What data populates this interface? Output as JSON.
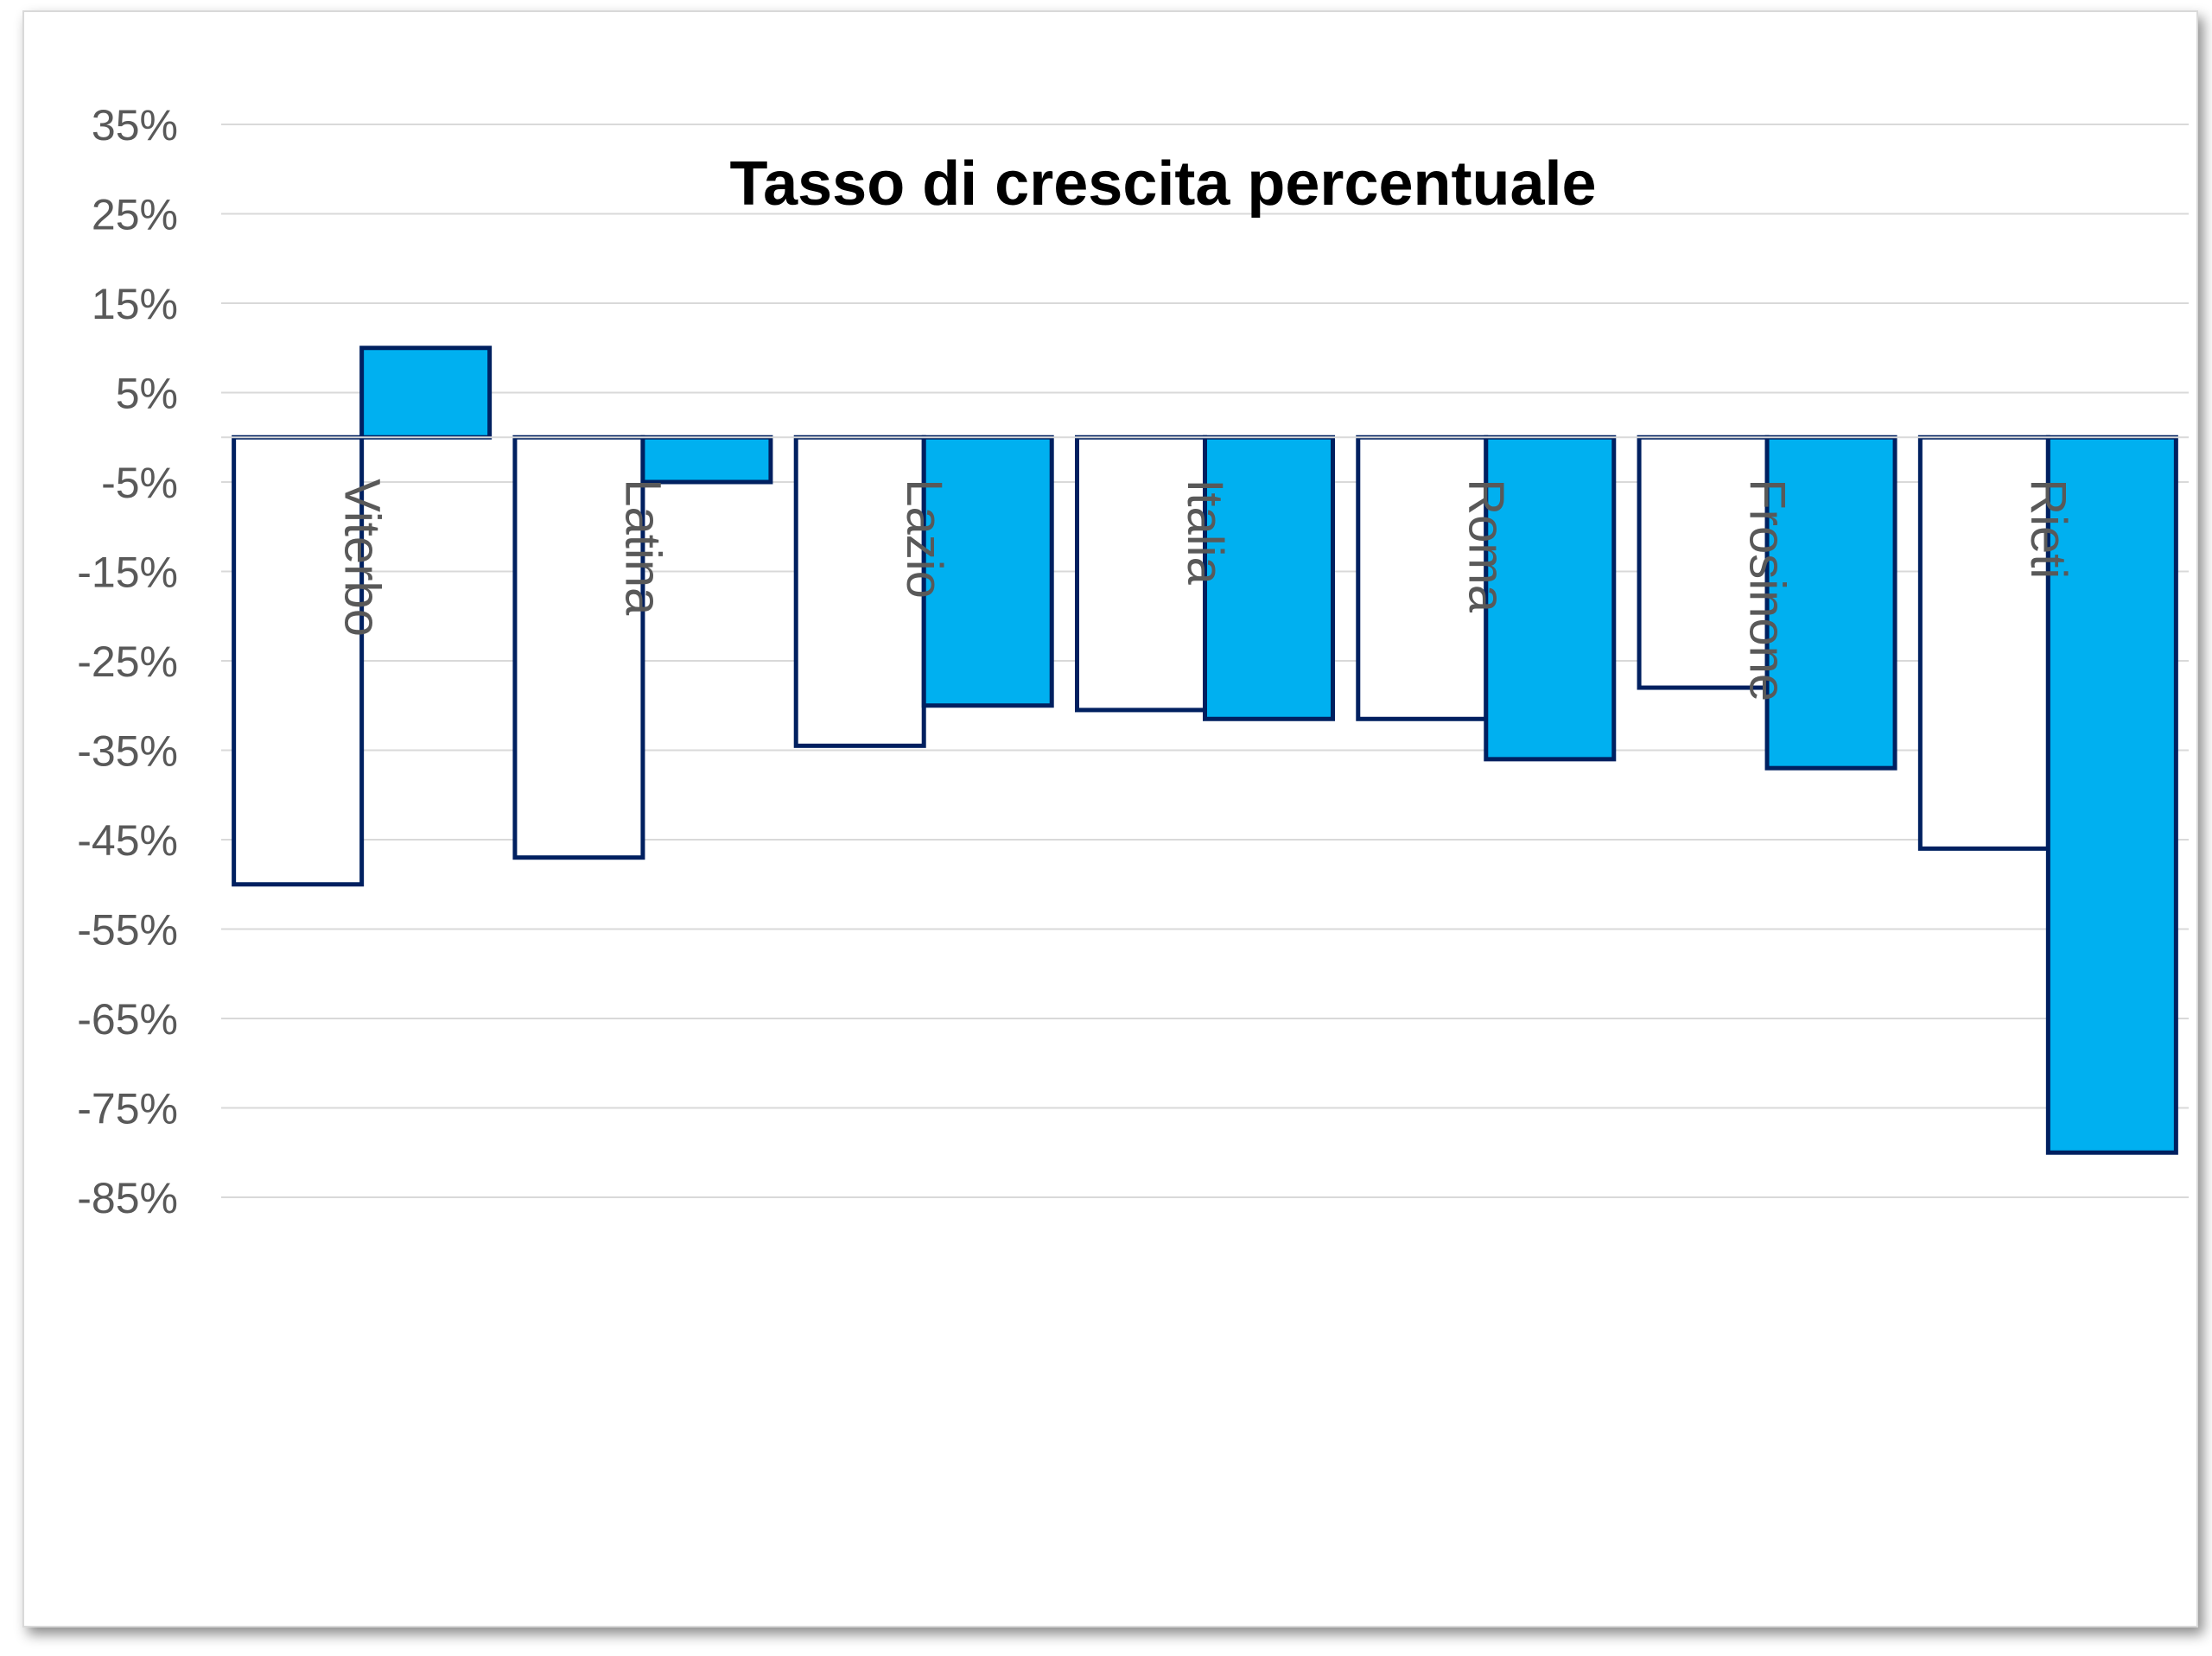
{
  "chart_data": {
    "type": "bar",
    "title": "Tasso di crescita percentuale",
    "xlabel": "",
    "ylabel": "",
    "categories": [
      "Viterbo",
      "Latina",
      "Lazio",
      "Italia",
      "Roma",
      "Frosinone",
      "Rieti"
    ],
    "series": [
      {
        "values": [
          -50,
          -47,
          -34.5,
          -30.5,
          -31.5,
          -28,
          -46
        ]
      },
      {
        "values": [
          10,
          -5,
          -30,
          -31.5,
          -36,
          -37,
          -80
        ]
      }
    ],
    "y_ticks": [
      35,
      25,
      15,
      5,
      -5,
      -15,
      -25,
      -35,
      -45,
      -55,
      -65,
      -75,
      -85
    ],
    "y_tick_labels": [
      "35%",
      "25%",
      "15%",
      "5%",
      "-5%",
      "-15%",
      "-25%",
      "-35%",
      "-45%",
      "-55%",
      "-65%",
      "-75%",
      "-85%"
    ],
    "ylim": [
      -85,
      35
    ],
    "grid": true,
    "legend": "none",
    "colors": {
      "series_fill": [
        "#ffffff",
        "#00b0f0"
      ],
      "bar_outline": "#002060",
      "grid": "#d9d9d9",
      "tick_text": "#595959",
      "category_text": "#595959",
      "title_text": "#000000"
    }
  }
}
